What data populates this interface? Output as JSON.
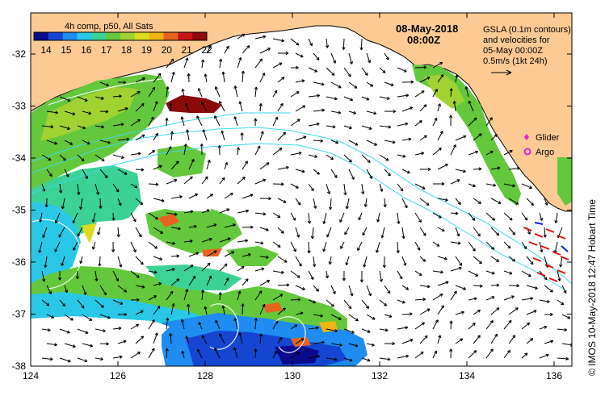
{
  "colorbar": {
    "title": "4h comp, p50, All Sats",
    "ticks": [
      "14",
      "15",
      "16",
      "17",
      "18",
      "19",
      "20",
      "21",
      "22"
    ],
    "colors": [
      "#0a0a8c",
      "#1446d2",
      "#1e8cf0",
      "#28c8e6",
      "#3cd296",
      "#64c83c",
      "#a0d232",
      "#dcdc1e",
      "#f0b414",
      "#e6641e",
      "#c81414",
      "#8c0a0a"
    ]
  },
  "header": {
    "date": "08-May-2018",
    "time": "08:00Z"
  },
  "legend": {
    "line1": "GSLA (0.1m contours)",
    "line2": "and velocities for",
    "line3": "05-May 00:00Z",
    "line4": "0.5m/s (1kt 24h)",
    "glider": "Glider",
    "argo": "Argo",
    "glider_color": "#e020e0",
    "argo_color": "#e020e0"
  },
  "map": {
    "land_color": "#fdca94",
    "y_ticks": [
      "-32",
      "-33",
      "-34",
      "-35",
      "-36",
      "-37",
      "-38"
    ],
    "x_ticks": [
      "124",
      "126",
      "128",
      "130",
      "132",
      "134",
      "136"
    ]
  },
  "credit": "©  IMOS 10-May-2018 12:47 Hobart Time"
}
